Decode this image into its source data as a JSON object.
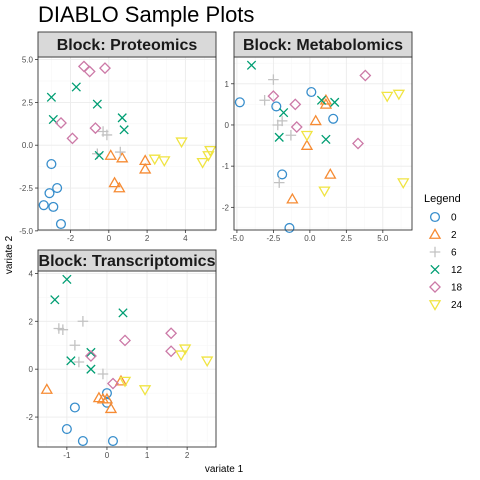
{
  "colors": {
    "0": "#388ECC",
    "2": "#F68B33",
    "6": "#C2C2C2",
    "12": "#009E73",
    "18": "#CC79A7",
    "24": "#F0E442",
    "strip_bg": "#d9d9d9",
    "panel_border": "#333333",
    "grid_major": "#ebebeb",
    "grid_minor": "#f5f5f5"
  },
  "chart_data": {
    "title": "DIABLO Sample Plots",
    "xlabel": "variate 1",
    "ylabel": "variate 2",
    "legend": {
      "title": "Legend",
      "position": "right",
      "entries": [
        {
          "label": "0",
          "shape": "circle"
        },
        {
          "label": "2",
          "shape": "triangle"
        },
        {
          "label": "6",
          "shape": "plus"
        },
        {
          "label": "12",
          "shape": "cross"
        },
        {
          "label": "18",
          "shape": "diamond"
        },
        {
          "label": "24",
          "shape": "triangle-down"
        }
      ]
    },
    "panels": [
      {
        "type": "scatter",
        "title": "Block: Proteomics",
        "xlim": [
          -3.7,
          5.6
        ],
        "ylim": [
          -4.95,
          5.15
        ],
        "xticks": [
          -2,
          0,
          2,
          4
        ],
        "yticks": [
          -5.0,
          -2.5,
          0.0,
          2.5,
          5.0
        ],
        "ytick_labels": [
          "-5.0",
          "-2.5",
          "0.0",
          "2.5",
          "5.0"
        ],
        "grid": true,
        "points": [
          {
            "group": "0",
            "x": -3.4,
            "y": -3.5
          },
          {
            "group": "0",
            "x": -3.1,
            "y": -2.8
          },
          {
            "group": "0",
            "x": -2.9,
            "y": -3.6
          },
          {
            "group": "0",
            "x": -2.7,
            "y": -2.5
          },
          {
            "group": "0",
            "x": -2.5,
            "y": -4.6
          },
          {
            "group": "0",
            "x": -3.0,
            "y": -1.1
          },
          {
            "group": "2",
            "x": 0.1,
            "y": -0.6
          },
          {
            "group": "2",
            "x": 0.3,
            "y": -2.2
          },
          {
            "group": "2",
            "x": 0.55,
            "y": -2.5
          },
          {
            "group": "2",
            "x": 0.7,
            "y": -0.75
          },
          {
            "group": "2",
            "x": 1.9,
            "y": -0.9
          },
          {
            "group": "2",
            "x": 1.9,
            "y": -1.4
          },
          {
            "group": "6",
            "x": -0.6,
            "y": -0.5
          },
          {
            "group": "6",
            "x": -0.3,
            "y": 0.8
          },
          {
            "group": "6",
            "x": -0.1,
            "y": 0.6
          },
          {
            "group": "6",
            "x": 0.6,
            "y": -0.4
          },
          {
            "group": "12",
            "x": -3.0,
            "y": 2.8
          },
          {
            "group": "12",
            "x": -2.9,
            "y": 1.5
          },
          {
            "group": "12",
            "x": -1.7,
            "y": 3.4
          },
          {
            "group": "12",
            "x": -0.6,
            "y": 2.4
          },
          {
            "group": "12",
            "x": 0.7,
            "y": 1.6
          },
          {
            "group": "12",
            "x": 0.8,
            "y": 0.9
          },
          {
            "group": "12",
            "x": -0.5,
            "y": -0.6
          },
          {
            "group": "18",
            "x": -1.3,
            "y": 4.6
          },
          {
            "group": "18",
            "x": -1.0,
            "y": 4.3
          },
          {
            "group": "18",
            "x": -0.2,
            "y": 4.5
          },
          {
            "group": "18",
            "x": -2.5,
            "y": 1.3
          },
          {
            "group": "18",
            "x": -1.9,
            "y": 0.4
          },
          {
            "group": "18",
            "x": -0.7,
            "y": 1.0
          },
          {
            "group": "24",
            "x": 2.4,
            "y": -0.8
          },
          {
            "group": "24",
            "x": 2.9,
            "y": -0.9
          },
          {
            "group": "24",
            "x": 3.8,
            "y": 0.2
          },
          {
            "group": "24",
            "x": 4.9,
            "y": -1.0
          },
          {
            "group": "24",
            "x": 5.2,
            "y": -0.6
          },
          {
            "group": "24",
            "x": 5.3,
            "y": -0.3
          }
        ]
      },
      {
        "type": "scatter",
        "title": "Block: Metabolomics",
        "xlim": [
          -5.2,
          7.0
        ],
        "ylim": [
          -2.55,
          1.65
        ],
        "xticks": [
          -5.0,
          -2.5,
          0.0,
          2.5,
          5.0
        ],
        "xtick_labels": [
          "-5.0",
          "-2.5",
          "0.0",
          "2.5",
          "5.0"
        ],
        "yticks": [
          -2,
          -1,
          0,
          1
        ],
        "grid": true,
        "points": [
          {
            "group": "0",
            "x": -4.8,
            "y": 0.55
          },
          {
            "group": "0",
            "x": -2.3,
            "y": 0.45
          },
          {
            "group": "0",
            "x": -1.9,
            "y": -1.2
          },
          {
            "group": "0",
            "x": -1.4,
            "y": -2.5
          },
          {
            "group": "0",
            "x": 0.1,
            "y": 0.8
          },
          {
            "group": "0",
            "x": 1.6,
            "y": 0.15
          },
          {
            "group": "2",
            "x": -1.2,
            "y": -1.8
          },
          {
            "group": "2",
            "x": -0.2,
            "y": -0.5
          },
          {
            "group": "2",
            "x": 0.4,
            "y": 0.1
          },
          {
            "group": "2",
            "x": 1.1,
            "y": 0.6
          },
          {
            "group": "2",
            "x": 1.1,
            "y": 0.5
          },
          {
            "group": "2",
            "x": 1.4,
            "y": -1.2
          },
          {
            "group": "6",
            "x": -3.1,
            "y": 0.6
          },
          {
            "group": "6",
            "x": -2.5,
            "y": 1.1
          },
          {
            "group": "6",
            "x": -2.1,
            "y": -1.4
          },
          {
            "group": "6",
            "x": -2.2,
            "y": 0.0
          },
          {
            "group": "6",
            "x": -1.9,
            "y": 0.1
          },
          {
            "group": "6",
            "x": -1.3,
            "y": -0.25
          },
          {
            "group": "12",
            "x": -4.0,
            "y": 1.45
          },
          {
            "group": "12",
            "x": -2.1,
            "y": -0.3
          },
          {
            "group": "12",
            "x": -1.8,
            "y": 0.3
          },
          {
            "group": "12",
            "x": 0.8,
            "y": 0.6
          },
          {
            "group": "12",
            "x": 1.1,
            "y": -0.35
          },
          {
            "group": "12",
            "x": 1.7,
            "y": 0.55
          },
          {
            "group": "18",
            "x": -2.5,
            "y": 0.7
          },
          {
            "group": "18",
            "x": -1.0,
            "y": 0.5
          },
          {
            "group": "18",
            "x": -0.9,
            "y": -0.05
          },
          {
            "group": "18",
            "x": 3.3,
            "y": -0.45
          },
          {
            "group": "18",
            "x": 3.8,
            "y": 1.2
          },
          {
            "group": "24",
            "x": -0.2,
            "y": -0.25
          },
          {
            "group": "24",
            "x": 1.0,
            "y": -1.6
          },
          {
            "group": "24",
            "x": 5.3,
            "y": 0.7
          },
          {
            "group": "24",
            "x": 6.1,
            "y": 0.75
          },
          {
            "group": "24",
            "x": 6.4,
            "y": -1.4
          }
        ]
      },
      {
        "type": "scatter",
        "title": "Block: Transcriptomics",
        "xlim": [
          -1.72,
          2.72
        ],
        "ylim": [
          -3.25,
          4.1
        ],
        "xticks": [
          -1,
          0,
          1,
          2
        ],
        "yticks": [
          -2,
          0,
          2,
          4
        ],
        "grid": true,
        "points": [
          {
            "group": "0",
            "x": -1.0,
            "y": -2.5
          },
          {
            "group": "0",
            "x": -0.8,
            "y": -1.6
          },
          {
            "group": "0",
            "x": -0.6,
            "y": -3.0
          },
          {
            "group": "0",
            "x": 0.0,
            "y": -1.0
          },
          {
            "group": "0",
            "x": 0.0,
            "y": -1.4
          },
          {
            "group": "0",
            "x": 0.15,
            "y": -3.0
          },
          {
            "group": "2",
            "x": -1.5,
            "y": -0.85
          },
          {
            "group": "2",
            "x": -0.2,
            "y": -1.2
          },
          {
            "group": "2",
            "x": -0.1,
            "y": -1.25
          },
          {
            "group": "2",
            "x": 0.0,
            "y": -1.25
          },
          {
            "group": "2",
            "x": 0.1,
            "y": -1.65
          },
          {
            "group": "2",
            "x": 0.35,
            "y": -0.5
          },
          {
            "group": "6",
            "x": -1.2,
            "y": 1.7
          },
          {
            "group": "6",
            "x": -1.1,
            "y": 1.65
          },
          {
            "group": "6",
            "x": -0.6,
            "y": 2.0
          },
          {
            "group": "6",
            "x": -0.8,
            "y": 1.0
          },
          {
            "group": "6",
            "x": -0.7,
            "y": 0.3
          },
          {
            "group": "6",
            "x": -0.1,
            "y": -0.2
          },
          {
            "group": "12",
            "x": -1.3,
            "y": 2.9
          },
          {
            "group": "12",
            "x": -1.0,
            "y": 3.75
          },
          {
            "group": "12",
            "x": -0.9,
            "y": 0.35
          },
          {
            "group": "12",
            "x": -0.4,
            "y": 0.7
          },
          {
            "group": "12",
            "x": -0.4,
            "y": 0.0
          },
          {
            "group": "12",
            "x": 0.4,
            "y": 2.35
          },
          {
            "group": "18",
            "x": -0.4,
            "y": 0.55
          },
          {
            "group": "18",
            "x": 0.15,
            "y": -0.6
          },
          {
            "group": "18",
            "x": 0.45,
            "y": 1.2
          },
          {
            "group": "18",
            "x": 1.6,
            "y": 1.5
          },
          {
            "group": "18",
            "x": 1.6,
            "y": 0.75
          },
          {
            "group": "24",
            "x": 0.45,
            "y": -0.5
          },
          {
            "group": "24",
            "x": 0.95,
            "y": -0.85
          },
          {
            "group": "24",
            "x": 1.85,
            "y": 0.6
          },
          {
            "group": "24",
            "x": 1.95,
            "y": 0.85
          },
          {
            "group": "24",
            "x": 2.5,
            "y": 0.35
          }
        ]
      }
    ]
  }
}
